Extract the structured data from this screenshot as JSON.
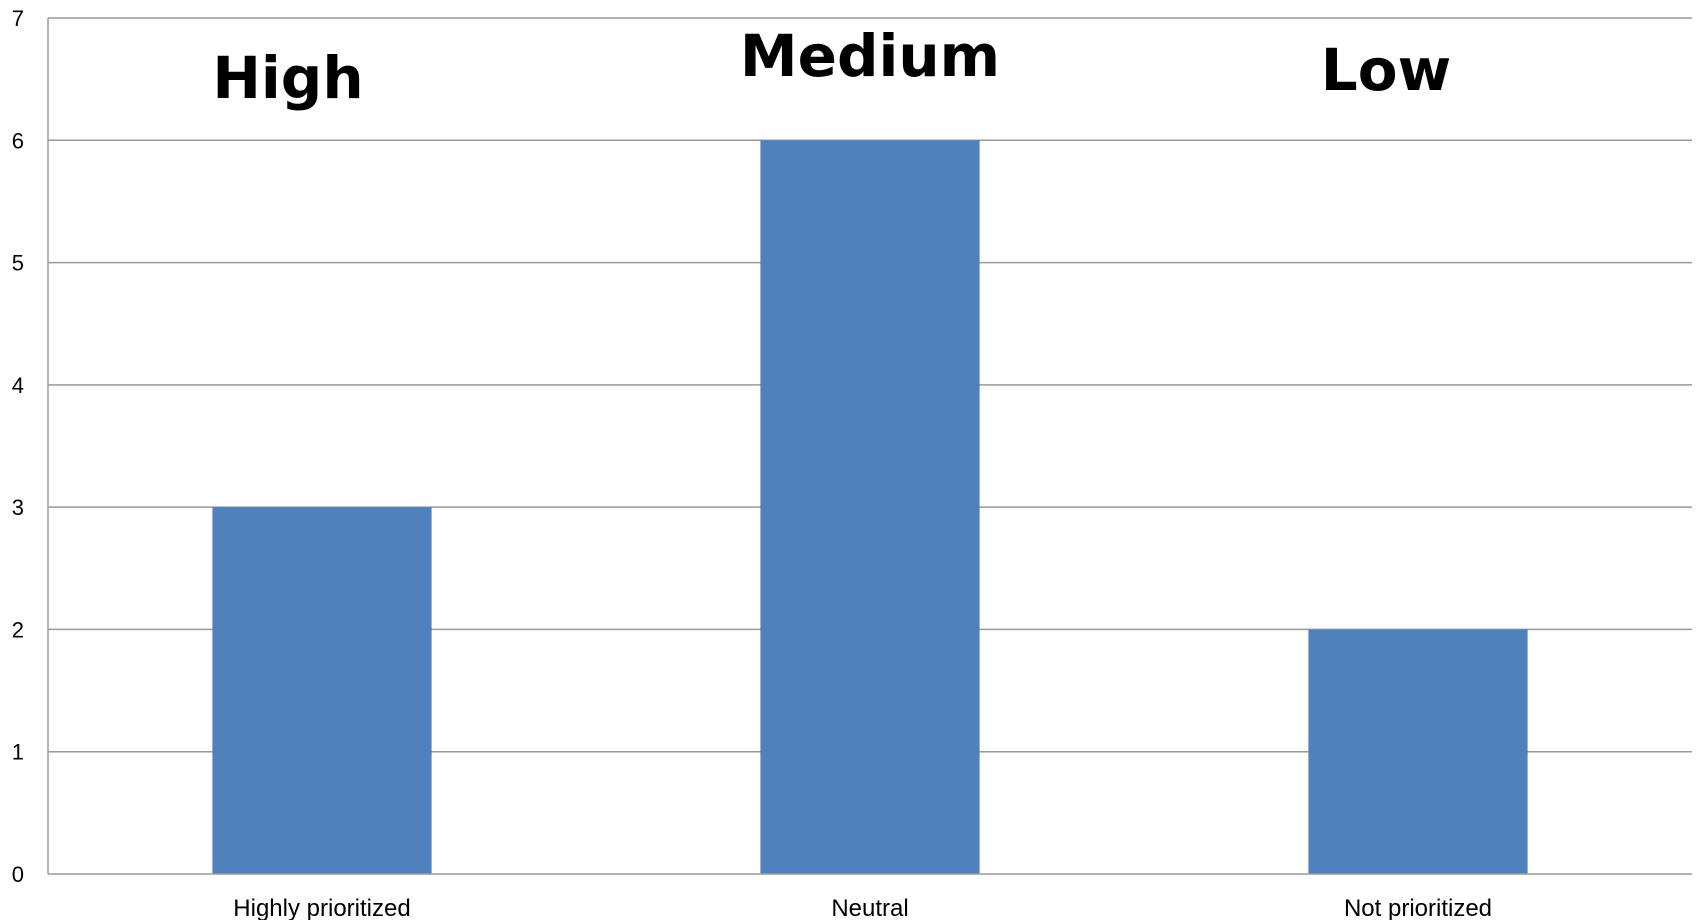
{
  "chart_data": {
    "type": "bar",
    "categories": [
      "Highly prioritized",
      "Neutral",
      "Not prioritized"
    ],
    "values": [
      3,
      6,
      2
    ],
    "annotations": [
      "High",
      "Medium",
      "Low"
    ],
    "ylim": [
      0,
      7
    ],
    "yticks": [
      "0",
      "1",
      "2",
      "3",
      "4",
      "5",
      "6",
      "7"
    ],
    "grid": true,
    "colors": {
      "bar": "#4F81BD"
    }
  }
}
